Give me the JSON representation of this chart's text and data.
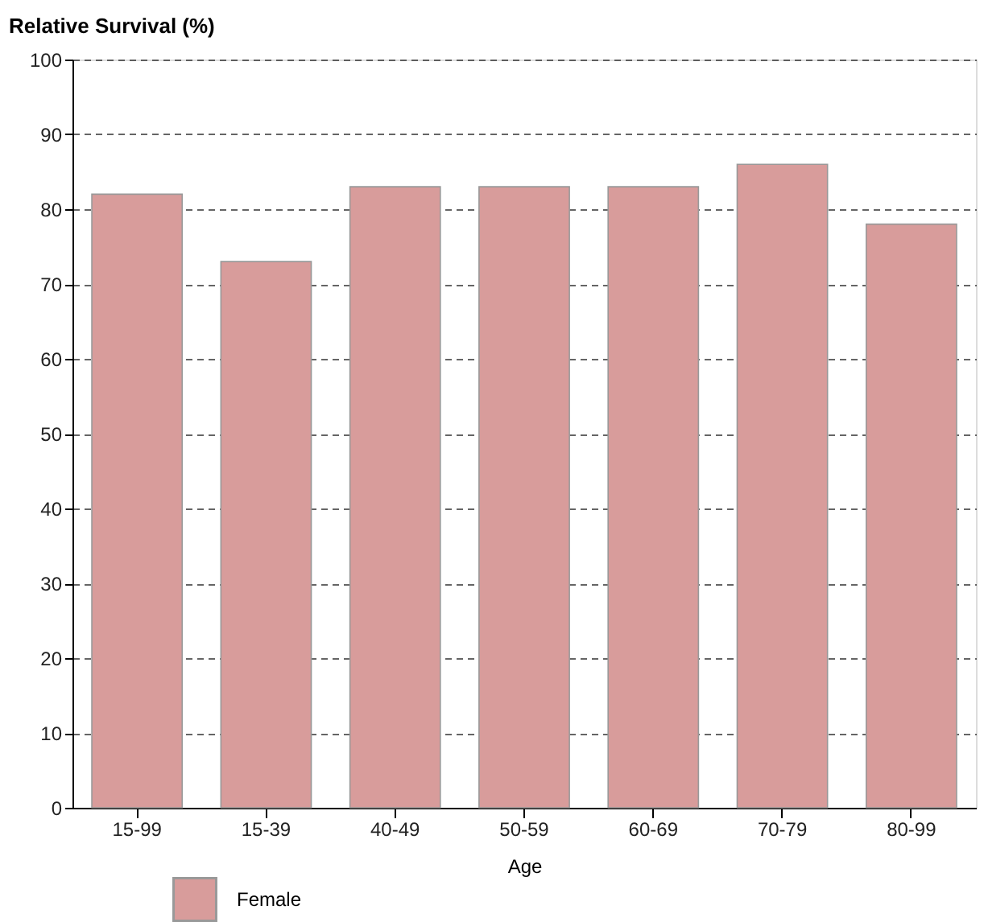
{
  "chart_data": {
    "type": "bar",
    "ylabel": "Relative Survival (%)",
    "xlabel": "Age",
    "categories": [
      "15-99",
      "15-39",
      "40-49",
      "50-59",
      "60-69",
      "70-79",
      "80-99"
    ],
    "series": [
      {
        "name": "Female",
        "color": "#d89c9b",
        "values": [
          82,
          73,
          83,
          83,
          83,
          86,
          78
        ]
      }
    ],
    "ylim": [
      0,
      100
    ],
    "yticks": [
      0,
      10,
      20,
      30,
      40,
      50,
      60,
      70,
      80,
      90,
      100
    ],
    "grid": "y",
    "line_style": "dashed",
    "legend": "bottom left"
  }
}
